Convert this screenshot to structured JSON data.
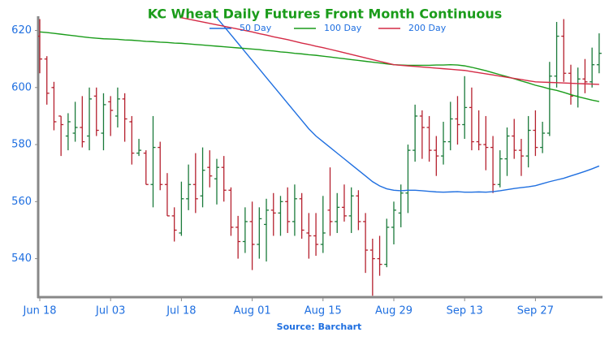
{
  "chart_data": {
    "type": "ohlc",
    "title": "KC Wheat Daily Futures Front Month Continuous",
    "source": "Source: Barchart",
    "categories": [
      "Jun 18",
      null,
      null,
      null,
      null,
      null,
      null,
      null,
      null,
      null,
      "Jul 03",
      null,
      null,
      null,
      null,
      null,
      null,
      null,
      null,
      null,
      "Jul 18",
      null,
      null,
      null,
      null,
      null,
      null,
      null,
      null,
      null,
      "Aug 01",
      null,
      null,
      null,
      null,
      null,
      null,
      null,
      null,
      null,
      "Aug 15",
      null,
      null,
      null,
      null,
      null,
      null,
      null,
      null,
      null,
      "Aug 29",
      null,
      null,
      null,
      null,
      null,
      null,
      null,
      null,
      null,
      "Sep 13",
      null,
      null,
      null,
      null,
      null,
      null,
      null,
      null,
      null,
      "Sep 27",
      null,
      null,
      null,
      null,
      null,
      null,
      null,
      null,
      null
    ],
    "ohlc": {
      "up_color": "#1a7a3a",
      "down_color": "#b5202e",
      "open": [
        618,
        610,
        600,
        590,
        583,
        584,
        586,
        583,
        597,
        584,
        595,
        590,
        596,
        588,
        577,
        577,
        566,
        579,
        566,
        555,
        549,
        561,
        566,
        562,
        572,
        568,
        572,
        564,
        551,
        546,
        553,
        545,
        552,
        557,
        556,
        560,
        553,
        561,
        549,
        548,
        545,
        557,
        553,
        558,
        555,
        562,
        553,
        543,
        540,
        538,
        551,
        556,
        563,
        578,
        590,
        586,
        578,
        576,
        581,
        589,
        587,
        593,
        581,
        580,
        579,
        566,
        575,
        583,
        578,
        576,
        585,
        579,
        584,
        604,
        618,
        605,
        597,
        603,
        602,
        608
      ],
      "high": [
        624,
        611,
        602,
        590,
        591,
        595,
        597,
        600,
        600,
        598,
        597,
        600,
        598,
        590,
        582,
        578,
        590,
        581,
        570,
        558,
        567,
        573,
        577,
        579,
        578,
        575,
        576,
        565,
        555,
        558,
        560,
        558,
        561,
        563,
        562,
        565,
        566,
        563,
        556,
        556,
        562,
        572,
        563,
        566,
        565,
        564,
        556,
        547,
        548,
        554,
        560,
        566,
        580,
        594,
        592,
        590,
        583,
        588,
        595,
        597,
        604,
        600,
        592,
        590,
        583,
        578,
        586,
        589,
        582,
        590,
        592,
        588,
        609,
        623,
        624,
        608,
        607,
        610,
        614,
        619
      ],
      "low": [
        605,
        594,
        585,
        576,
        578,
        581,
        579,
        578,
        583,
        578,
        583,
        586,
        581,
        573,
        576,
        566,
        558,
        564,
        555,
        546,
        548,
        557,
        556,
        558,
        565,
        559,
        560,
        548,
        540,
        542,
        536,
        540,
        539,
        548,
        548,
        549,
        548,
        547,
        540,
        541,
        542,
        548,
        549,
        553,
        549,
        550,
        535,
        527,
        534,
        537,
        545,
        551,
        556,
        574,
        575,
        574,
        569,
        573,
        578,
        580,
        582,
        578,
        578,
        571,
        563,
        565,
        569,
        575,
        569,
        572,
        576,
        577,
        583,
        600,
        602,
        594,
        593,
        598,
        600,
        605
      ],
      "close": [
        610,
        598,
        588,
        587,
        588,
        586,
        581,
        596,
        585,
        594,
        592,
        596,
        589,
        577,
        578,
        566,
        579,
        566,
        555,
        550,
        561,
        566,
        561,
        571,
        569,
        572,
        564,
        551,
        546,
        553,
        545,
        554,
        557,
        556,
        560,
        553,
        561,
        550,
        548,
        545,
        549,
        553,
        558,
        555,
        562,
        553,
        543,
        540,
        538,
        551,
        557,
        563,
        578,
        590,
        586,
        578,
        576,
        581,
        589,
        587,
        593,
        581,
        580,
        579,
        566,
        575,
        583,
        578,
        576,
        585,
        579,
        584,
        604,
        618,
        605,
        597,
        603,
        602,
        608,
        612
      ]
    },
    "series": [
      {
        "name": "50 Day",
        "color": "#1f6fe0",
        "values": [
          null,
          null,
          null,
          null,
          null,
          null,
          null,
          null,
          null,
          null,
          null,
          null,
          null,
          null,
          null,
          null,
          null,
          null,
          null,
          null,
          null,
          null,
          null,
          null,
          null,
          624.5,
          621.5,
          618.5,
          615.5,
          612.5,
          609.5,
          606.5,
          603.5,
          600.5,
          597.5,
          594.5,
          591.5,
          588.5,
          585.5,
          583,
          581,
          579,
          577,
          575,
          573,
          571,
          569,
          567,
          565.5,
          564.5,
          564,
          563.8,
          564,
          564,
          563.8,
          563.6,
          563.4,
          563.3,
          563.4,
          563.5,
          563.3,
          563.3,
          563.4,
          563.3,
          563.5,
          563.8,
          564.2,
          564.6,
          564.9,
          565.2,
          565.6,
          566.3,
          567,
          567.6,
          568.2,
          569,
          569.8,
          570.6,
          571.5,
          572.5
        ]
      },
      {
        "name": "100 Day",
        "color": "#1a9c1a",
        "values": [
          619.5,
          619.3,
          619,
          618.7,
          618.4,
          618.1,
          617.8,
          617.5,
          617.3,
          617.1,
          617,
          616.9,
          616.7,
          616.6,
          616.4,
          616.2,
          616.1,
          615.9,
          615.8,
          615.6,
          615.5,
          615.3,
          615.1,
          614.9,
          614.7,
          614.5,
          614.3,
          614.1,
          613.9,
          613.7,
          613.5,
          613.3,
          613,
          612.8,
          612.5,
          612.3,
          612,
          611.8,
          611.5,
          611.3,
          611,
          610.7,
          610.4,
          610.1,
          609.8,
          609.5,
          609.2,
          608.9,
          608.6,
          608.3,
          608,
          607.9,
          607.8,
          607.8,
          607.8,
          607.8,
          607.9,
          607.9,
          608,
          607.9,
          607.6,
          607.1,
          606.5,
          605.9,
          605.2,
          604.5,
          603.8,
          603.1,
          602.3,
          601.6,
          600.8,
          600.2,
          599.5,
          599,
          598.3,
          597.5,
          596.8,
          596.2,
          595.6,
          595.1
        ]
      },
      {
        "name": "200 Day",
        "color": "#d42a45",
        "values": [
          null,
          null,
          null,
          null,
          null,
          null,
          null,
          null,
          null,
          null,
          null,
          null,
          null,
          null,
          null,
          null,
          null,
          null,
          null,
          null,
          624.5,
          624,
          623.5,
          623,
          622.5,
          622,
          621.5,
          621,
          620.5,
          620,
          619.5,
          618.9,
          618.4,
          617.8,
          617.3,
          616.8,
          616.2,
          615.6,
          615.1,
          614.5,
          614,
          613.4,
          612.8,
          612.2,
          611.6,
          611,
          610.4,
          609.8,
          609.2,
          608.6,
          608,
          607.8,
          607.6,
          607.4,
          607.2,
          607,
          606.8,
          606.6,
          606.4,
          606.2,
          606,
          605.6,
          605.2,
          604.8,
          604.4,
          604,
          603.6,
          603.2,
          602.8,
          602.4,
          602,
          601.9,
          601.8,
          601.7,
          601.6,
          601.5,
          601.4,
          601.3,
          601.2,
          601.1
        ]
      }
    ],
    "ylim": [
      526.5,
      625
    ],
    "yticks": [
      540,
      560,
      580,
      600,
      620
    ],
    "grid": false
  }
}
